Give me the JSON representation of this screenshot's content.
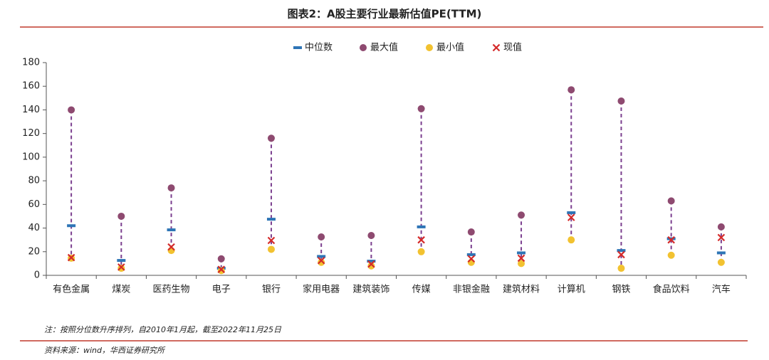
{
  "chart_data": {
    "type": "range",
    "title": "图表2：A股主要行业最新估值PE(TTM)",
    "note": "注：按照分位数升序排列，自2010年1月起，截至2022年11月25日",
    "source": "资料来源：wind，华西证券研究所",
    "categories": [
      "有色金属",
      "煤炭",
      "医药生物",
      "电子",
      "银行",
      "家用电器",
      "建筑装饰",
      "传媒",
      "非银金融",
      "建筑材料",
      "计算机",
      "钢铁",
      "食品饮料",
      "汽车"
    ],
    "series": [
      {
        "name": "中位数",
        "color": "#2e75b6",
        "marker": "dash",
        "values": [
          42,
          12.6,
          38.5,
          6,
          47.5,
          16,
          12,
          41,
          17.5,
          19,
          53,
          21,
          31,
          19
        ]
      },
      {
        "name": "最大值",
        "color": "#8e4a70",
        "marker": "circle",
        "values": [
          140,
          50,
          74,
          14,
          116,
          32.5,
          33.7,
          141,
          36.7,
          51,
          157,
          147.5,
          63,
          41
        ]
      },
      {
        "name": "最小值",
        "color": "#f2c230",
        "marker": "circle",
        "values": [
          14.5,
          6,
          21,
          4,
          22,
          11,
          8,
          20,
          11,
          10,
          30,
          6,
          17,
          11
        ]
      },
      {
        "name": "现值",
        "color": "#d42a2a",
        "marker": "x",
        "values": [
          15,
          7,
          24,
          5,
          29.5,
          12.5,
          9.5,
          30,
          14,
          14.5,
          49,
          17.5,
          30,
          32
        ]
      }
    ],
    "range_color": "#7b3f8f",
    "ylim": [
      0,
      180
    ],
    "yticks": [
      0,
      20,
      40,
      60,
      80,
      100,
      120,
      140,
      160,
      180
    ]
  }
}
